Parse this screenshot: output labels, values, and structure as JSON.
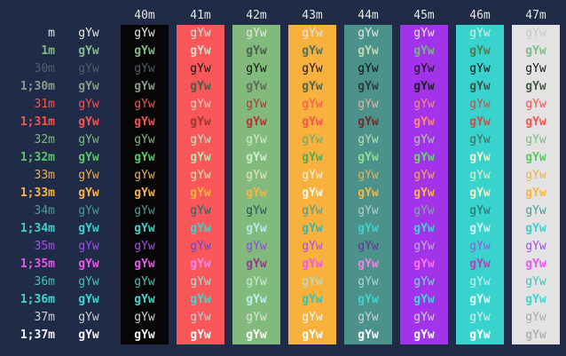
{
  "terminal": {
    "background": "#202b47",
    "header_fg": "#e6e6e4",
    "text_sample": "gYw",
    "columns": [
      {
        "code": "40m",
        "bg": "#060606"
      },
      {
        "code": "41m",
        "bg": "#f9575a"
      },
      {
        "code": "42m",
        "bg": "#82ba7d"
      },
      {
        "code": "43m",
        "bg": "#f9b13e"
      },
      {
        "code": "44m",
        "bg": "#4b938a"
      },
      {
        "code": "45m",
        "bg": "#a233ea"
      },
      {
        "code": "46m",
        "bg": "#39d3cd"
      },
      {
        "code": "47m",
        "bg": "#e3e3e3"
      }
    ],
    "rows": [
      {
        "label": "m",
        "fg": "#e6e6e4",
        "bold": false
      },
      {
        "label": "1m",
        "fg": "#85ba88",
        "bold": true
      },
      {
        "label": "30m",
        "fg": "#545d6e",
        "bold": false
      },
      {
        "label": "1;30m",
        "fg": "#8b9a8b",
        "bold": true
      },
      {
        "label": "31m",
        "fg": "#fb524e",
        "bold": false
      },
      {
        "label": "1;31m",
        "fg": "#fb524e",
        "bold": true
      },
      {
        "label": "32m",
        "fg": "#80bc82",
        "bold": false
      },
      {
        "label": "1;32m",
        "fg": "#59c768",
        "bold": true
      },
      {
        "label": "33m",
        "fg": "#eeae52",
        "bold": false
      },
      {
        "label": "1;33m",
        "fg": "#fcb43e",
        "bold": true
      },
      {
        "label": "34m",
        "fg": "#4c9c94",
        "bold": false
      },
      {
        "label": "1;34m",
        "fg": "#3ed1ca",
        "bold": true
      },
      {
        "label": "35m",
        "fg": "#a44fe8",
        "bold": false
      },
      {
        "label": "1;35m",
        "fg": "#ef55ef",
        "bold": true
      },
      {
        "label": "36m",
        "fg": "#42c3b6",
        "bold": false
      },
      {
        "label": "1;36m",
        "fg": "#3cd7cd",
        "bold": true
      },
      {
        "label": "37m",
        "fg": "#ced1d5",
        "bold": false
      },
      {
        "label": "1;37m",
        "fg": "#f3f3f3",
        "bold": true
      }
    ],
    "cell_overrides": {
      "1-1": "#d8ddca",
      "2-1": "#141414",
      "3-1": "#4b5a49",
      "4-1": "#ffc9c3",
      "5-1": "#a23531",
      "6-1": "#d0e7c9",
      "7-1": "#b4e3af",
      "8-1": "#f6e2ab",
      "10-1": "#21666c",
      "12-1": "#6b46cf",
      "13-1": "#ff87ef",
      "14-1": "#a9e2da",
      "17-1": "#ffffff",
      "1-2": "#4a614b",
      "2-2": "#131313",
      "3-2": "#5c6e59",
      "4-2": "#b13531",
      "5-2": "#bc2f2c",
      "6-2": "#d3ead0",
      "7-2": "#cdeccb",
      "8-2": "#f0e4bb",
      "10-2": "#28555e",
      "11-2": "#b5e9e1",
      "12-2": "#8e43e2",
      "13-2": "#9c3596",
      "14-2": "#cfe8e0",
      "15-2": "#b8efe7",
      "16-2": "#dde4da",
      "17-2": "#fdfdfd",
      "1-3": "#4e7257",
      "2-3": "#181818",
      "3-3": "#56624d",
      "6-3": "#6fa968",
      "7-3": "#57a953",
      "8-3": "#fbf3dc",
      "9-3": "#fdf8ea",
      "11-3": "#35b7b1",
      "14-3": "#b5e3da",
      "15-3": "#30c5ba",
      "16-3": "#fafafa",
      "17-3": "#ffffff",
      "1-4": "#bfd8b4",
      "2-4": "#0e0e0e",
      "3-4": "#2f3b3c",
      "4-4": "#f4a9a4",
      "5-4": "#7a2824",
      "6-4": "#bcdcb4",
      "7-4": "#95d993",
      "10-4": "#b3cdc6",
      "12-4": "#6c2b9e",
      "13-4": "#fb79ec",
      "14-4": "#abdad2",
      "17-4": "#ffffff",
      "1-5": "#74b383",
      "2-5": "#101010",
      "3-5": "#1d2121",
      "4-5": "#fb8e7e",
      "5-5": "#fb8578",
      "6-5": "#aec9a5",
      "7-5": "#63db63",
      "10-5": "#7fa9a4",
      "12-5": "#bdaed6",
      "13-5": "#f973f3",
      "14-5": "#7cd8d0",
      "17-5": "#ffffff",
      "1-6": "#4f7d54",
      "2-6": "#0c0c0c",
      "3-6": "#3d5549",
      "4-6": "#d84945",
      "5-6": "#d84945",
      "6-6": "#486b51",
      "7-6": "#f2ecd4",
      "8-6": "#efe6c0",
      "9-6": "#f6ecc0",
      "10-6": "#306a66",
      "11-6": "#cdf2ee",
      "13-6": "#c437be",
      "14-6": "#cdeeea",
      "15-6": "#dff7f3",
      "16-6": "#dcebe7",
      "17-6": "#ffffff",
      "0-7": "#c6c6c6",
      "2-7": "#141414",
      "3-7": "#475a48",
      "16-7": "#ababab",
      "17-7": "#b4b4b4"
    }
  }
}
